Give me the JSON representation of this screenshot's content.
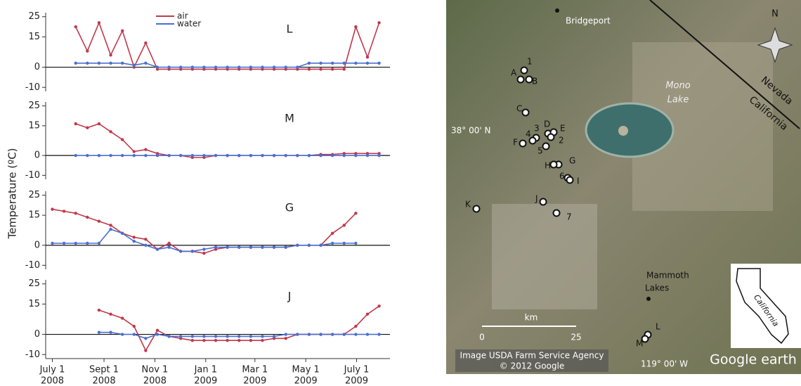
{
  "chart_data": [
    {
      "type": "line",
      "title": "L",
      "x": [
        "2008-07-01",
        "2008-07-15",
        "2008-07-29",
        "2008-08-12",
        "2008-08-26",
        "2008-09-09",
        "2008-09-23",
        "2008-10-07",
        "2008-10-21",
        "2008-11-04",
        "2008-11-18",
        "2008-12-02",
        "2008-12-16",
        "2008-12-30",
        "2009-01-13",
        "2009-01-27",
        "2009-02-10",
        "2009-02-24",
        "2009-03-10",
        "2009-03-24",
        "2009-04-07",
        "2009-04-21",
        "2009-05-05",
        "2009-05-19",
        "2009-06-02",
        "2009-06-16",
        "2009-06-30",
        "2009-07-14",
        "2009-07-28",
        "2009-08-11"
      ],
      "series": [
        {
          "name": "air",
          "color": "#c0394b",
          "values": [
            null,
            null,
            20,
            8,
            22,
            6,
            18,
            0,
            12,
            -1,
            -1,
            -1,
            -1,
            -1,
            -1,
            -1,
            -1,
            -1,
            -1,
            -1,
            -1,
            -1,
            -1,
            -1,
            -1,
            -1,
            20,
            5,
            22,
            null
          ]
        },
        {
          "name": "water",
          "color": "#4a6fd0",
          "values": [
            null,
            null,
            2,
            2,
            2,
            2,
            2,
            1,
            2,
            0,
            0,
            0,
            0,
            0,
            0,
            0,
            0,
            0,
            0,
            0,
            0,
            0,
            2,
            2,
            2,
            2,
            2,
            2,
            2,
            null
          ]
        }
      ],
      "xlim": [
        "2008-06-23",
        "2009-08-10"
      ],
      "ylim": [
        -12,
        27
      ],
      "yticks": [
        -10,
        0,
        15,
        25
      ]
    },
    {
      "type": "line",
      "title": "M",
      "x": [
        "2008-07-01",
        "2008-07-15",
        "2008-07-29",
        "2008-08-12",
        "2008-08-26",
        "2008-09-09",
        "2008-09-23",
        "2008-10-07",
        "2008-10-21",
        "2008-11-04",
        "2008-11-18",
        "2008-12-02",
        "2008-12-16",
        "2008-12-30",
        "2009-01-13",
        "2009-01-27",
        "2009-02-10",
        "2009-02-24",
        "2009-03-10",
        "2009-03-24",
        "2009-04-07",
        "2009-04-21",
        "2009-05-05",
        "2009-05-19",
        "2009-06-02",
        "2009-06-16",
        "2009-06-30",
        "2009-07-14",
        "2009-07-28",
        "2009-08-11"
      ],
      "series": [
        {
          "color": "#c0394b",
          "values": [
            null,
            null,
            16,
            14,
            16,
            12,
            8,
            2,
            3,
            1,
            0,
            0,
            -1,
            -1,
            0,
            0,
            0,
            0,
            0,
            0,
            0,
            0,
            0,
            0.5,
            0.5,
            1,
            1,
            1,
            1,
            null
          ]
        },
        {
          "color": "#4a6fd0",
          "values": [
            null,
            null,
            0,
            0,
            0,
            0,
            0,
            0,
            0,
            0,
            0,
            0,
            0,
            0,
            0,
            0,
            0,
            0,
            0,
            0,
            0,
            0,
            0,
            0,
            0,
            0,
            0,
            0,
            0,
            null
          ]
        }
      ],
      "xlim": [
        "2008-06-23",
        "2009-08-10"
      ],
      "ylim": [
        -12,
        27
      ],
      "yticks": [
        -10,
        0,
        15,
        25
      ]
    },
    {
      "type": "line",
      "title": "G",
      "x": [
        "2008-07-01",
        "2008-07-15",
        "2008-07-29",
        "2008-08-12",
        "2008-08-26",
        "2008-09-09",
        "2008-09-23",
        "2008-10-07",
        "2008-10-21",
        "2008-11-04",
        "2008-11-18",
        "2008-12-02",
        "2008-12-16",
        "2008-12-30",
        "2009-01-13",
        "2009-01-27",
        "2009-02-10",
        "2009-02-24",
        "2009-03-10",
        "2009-03-24",
        "2009-04-07",
        "2009-04-21",
        "2009-05-05",
        "2009-05-19",
        "2009-06-02",
        "2009-06-16",
        "2009-06-30",
        "2009-07-14",
        "2009-07-28",
        "2009-08-11"
      ],
      "series": [
        {
          "color": "#c0394b",
          "values": [
            18,
            17,
            16,
            14,
            12,
            10,
            6,
            4,
            3,
            -2,
            1,
            -3,
            -3,
            -4,
            -2,
            -1,
            -1,
            -1,
            -1,
            -1,
            -1,
            0,
            0,
            0,
            6,
            10,
            16,
            null,
            null,
            null
          ]
        },
        {
          "color": "#4a6fd0",
          "values": [
            1,
            1,
            1,
            1,
            1,
            8,
            6,
            2,
            0,
            -2,
            -1,
            -3,
            -3,
            -2,
            -1,
            -1,
            -1,
            -1,
            -1,
            -1,
            -1,
            0,
            0,
            0,
            1,
            1,
            1,
            null,
            null,
            null
          ]
        }
      ],
      "xlim": [
        "2008-06-23",
        "2009-08-10"
      ],
      "ylim": [
        -12,
        27
      ],
      "yticks": [
        -10,
        0,
        15,
        25
      ]
    },
    {
      "type": "line",
      "title": "J",
      "x": [
        "2008-07-01",
        "2008-07-15",
        "2008-07-29",
        "2008-08-12",
        "2008-08-26",
        "2008-09-09",
        "2008-09-23",
        "2008-10-07",
        "2008-10-21",
        "2008-11-04",
        "2008-11-18",
        "2008-12-02",
        "2008-12-16",
        "2008-12-30",
        "2009-01-13",
        "2009-01-27",
        "2009-02-10",
        "2009-02-24",
        "2009-03-10",
        "2009-03-24",
        "2009-04-07",
        "2009-04-21",
        "2009-05-05",
        "2009-05-19",
        "2009-06-02",
        "2009-06-16",
        "2009-06-30",
        "2009-07-14",
        "2009-07-28",
        "2009-08-11"
      ],
      "series": [
        {
          "color": "#c0394b",
          "values": [
            null,
            null,
            null,
            null,
            12,
            10,
            8,
            4,
            -8,
            2,
            -1,
            -2,
            -3,
            -3,
            -3,
            -3,
            -3,
            -3,
            -3,
            -2,
            -2,
            0,
            0,
            0,
            0,
            0,
            4,
            10,
            14,
            null
          ]
        },
        {
          "color": "#4a6fd0",
          "values": [
            null,
            null,
            null,
            null,
            1,
            1,
            0,
            0,
            -2,
            0,
            -1,
            -1,
            -1,
            -1,
            -1,
            -1,
            -1,
            -1,
            -1,
            -1,
            0,
            0,
            0,
            0,
            0,
            0,
            0,
            0,
            0,
            null
          ]
        }
      ],
      "xlim": [
        "2008-06-23",
        "2009-08-10"
      ],
      "ylim": [
        -12,
        27
      ],
      "yticks": [
        -10,
        0,
        15,
        25
      ],
      "xticks": [
        {
          "value": "2008-07-01",
          "label": [
            "July 1",
            "2008"
          ]
        },
        {
          "value": "2008-09-01",
          "label": [
            "Sept 1",
            "2008"
          ]
        },
        {
          "value": "2008-11-01",
          "label": [
            "Nov 1",
            "2008"
          ]
        },
        {
          "value": "2009-01-01",
          "label": [
            "Jan 1",
            "2009"
          ]
        },
        {
          "value": "2009-03-01",
          "label": [
            "Mar 1",
            "2009"
          ]
        },
        {
          "value": "2009-05-01",
          "label": [
            "May 1",
            "2009"
          ]
        },
        {
          "value": "2009-07-01",
          "label": [
            "July 1",
            "2009"
          ]
        }
      ]
    }
  ],
  "y_label": "Temperature (ºC)",
  "map": {
    "places": [
      "Bridgeport",
      "Mono",
      "Lake",
      "Nevada",
      "California",
      "N",
      "38° 00' N",
      "km",
      "0",
      "25",
      "Mammoth",
      "Lakes",
      "119° 00' W",
      "Image USDA Farm Service Agency",
      "© 2012 Google",
      "Google earth",
      "California"
    ],
    "sites": [
      "1",
      "A",
      "B",
      "C",
      "D",
      "E",
      "2",
      "3",
      "4",
      "F",
      "5",
      "G",
      "H",
      "6",
      "I",
      "J",
      "K",
      "7",
      "L",
      "M"
    ]
  }
}
